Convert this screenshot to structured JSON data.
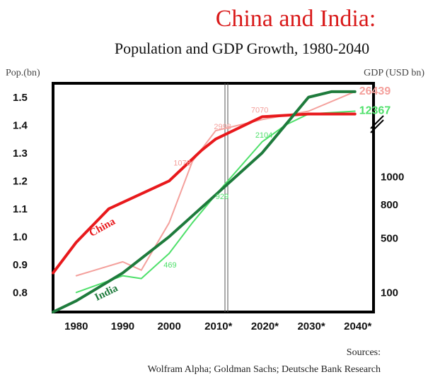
{
  "chart_data": {
    "type": "line",
    "title": "China and India:",
    "subtitle": "Population and GDP Growth, 1980-2040",
    "ylabel_left": "Pop.(bn)",
    "ylabel_right": "GDP (USD bn)",
    "x_ticks": [
      "1980",
      "1990",
      "2000",
      "2010*",
      "2020*",
      "2030*",
      "2040*"
    ],
    "y_left_ticks": [
      "1.5",
      "1.4",
      "1.3",
      "1.2",
      "1.1",
      "1.0",
      "0.9",
      "0.8"
    ],
    "y_right_ticks": [
      "1000",
      "800",
      "500",
      "100"
    ],
    "ylim_left": [
      0.73,
      1.55
    ],
    "series": [
      {
        "name": "China",
        "kind": "population",
        "color": "#e8191c",
        "x": [
          1975,
          1980,
          1987,
          2000,
          2007,
          2010,
          2020,
          2030,
          2040
        ],
        "values": [
          0.87,
          0.98,
          1.1,
          1.2,
          1.31,
          1.35,
          1.43,
          1.44,
          1.44
        ]
      },
      {
        "name": "India",
        "kind": "population",
        "color": "#1e7b3c",
        "x": [
          1975,
          1980,
          1990,
          2000,
          2010,
          2020,
          2030,
          2035,
          2040
        ],
        "values": [
          0.73,
          0.77,
          0.87,
          1.0,
          1.15,
          1.3,
          1.5,
          1.52,
          1.52
        ]
      },
      {
        "name": "China GDP",
        "kind": "gdp",
        "color": "#f4a09c",
        "x": [
          1980,
          1990,
          1994,
          2000,
          2005,
          2010,
          2020,
          2030,
          2040
        ],
        "values": [
          0.86,
          0.91,
          0.88,
          1.05,
          1.27,
          1.38,
          1.42,
          1.45,
          1.52
        ]
      },
      {
        "name": "India GDP",
        "kind": "gdp",
        "color": "#4ee06a",
        "x": [
          1980,
          1990,
          1994,
          2000,
          2005,
          2010,
          2020,
          2025,
          2030,
          2040
        ],
        "values": [
          0.8,
          0.86,
          0.85,
          0.94,
          1.05,
          1.15,
          1.34,
          1.4,
          1.44,
          1.45
        ]
      }
    ],
    "data_labels": [
      {
        "text": "2998",
        "series": "China GDP",
        "x": 2011.5,
        "y": 1.385
      },
      {
        "text": "7070",
        "series": "China GDP",
        "x": 2019.5,
        "y": 1.445
      },
      {
        "text": "1078",
        "series": "China GDP",
        "x": 2002.8,
        "y": 1.255
      },
      {
        "text": "2104",
        "series": "India GDP",
        "x": 2020.4,
        "y": 1.355
      },
      {
        "text": "929",
        "series": "India GDP",
        "x": 2011.4,
        "y": 1.135
      },
      {
        "text": "469",
        "series": "India GDP",
        "x": 2000.2,
        "y": 0.89
      }
    ],
    "end_labels": [
      {
        "text": "26439",
        "series": "China GDP"
      },
      {
        "text": "12367",
        "series": "India GDP"
      }
    ],
    "series_labels": [
      {
        "text": "China",
        "series": "China",
        "x": 1983.3,
        "y": 1.0,
        "rotate": -29
      },
      {
        "text": "India",
        "series": "India",
        "x": 1984.4,
        "y": 0.77,
        "rotate": -26
      }
    ],
    "projection_divider_x": 2010,
    "axis_break": "after 1000",
    "sources_heading": "Sources:",
    "sources": "Wolfram Alpha; Goldman Sachs; Deutsche Bank Research"
  }
}
